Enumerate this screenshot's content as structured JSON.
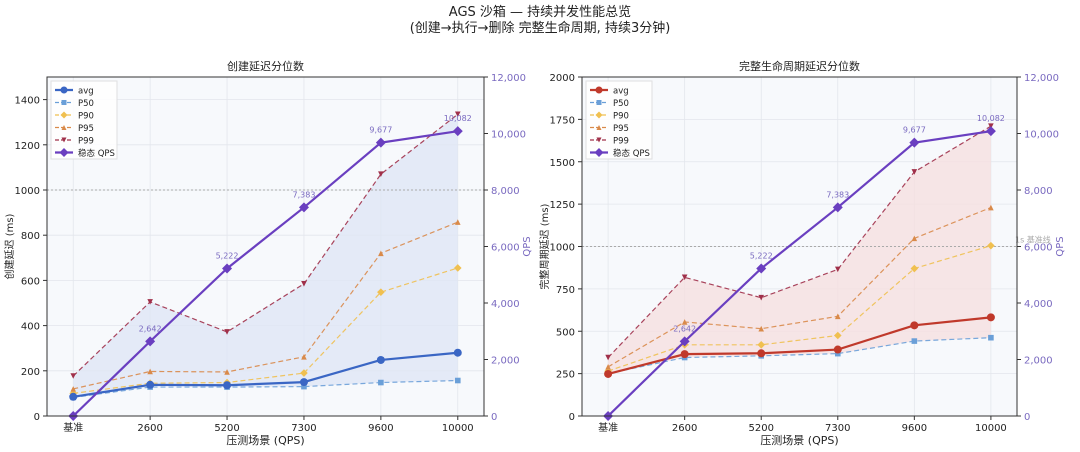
{
  "title": "AGS 沙箱 — 持续并发性能总览",
  "subtitle": "(创建→执行→删除 完整生命周期, 持续3分钟)",
  "colors": {
    "avg_left": "#3a66c4",
    "avg_right": "#c0392b",
    "p50": "#6a9fd8",
    "p90": "#f0c050",
    "p95": "#d98a4a",
    "p99": "#a0304a",
    "qps": "#6a3fc0",
    "fill_left": "#dfe6f5",
    "fill_right": "#f5e0e0"
  },
  "chart_data": [
    {
      "type": "line",
      "title": "创建延迟分位数",
      "xlabel": "压测场景 (QPS)",
      "ylabel": "创建延迟 (ms)",
      "y2label": "QPS",
      "categories": [
        "基准",
        "2600",
        "5200",
        "7300",
        "9600",
        "10000"
      ],
      "ylim": [
        0,
        1500
      ],
      "yticks": [
        0,
        200,
        400,
        600,
        800,
        1000,
        1200,
        1400
      ],
      "y2lim": [
        0,
        12000
      ],
      "y2ticks": [
        "0",
        "2,000",
        "4,000",
        "6,000",
        "8,000",
        "10,000",
        "12,000"
      ],
      "grid": true,
      "legend": "top-left",
      "reference_line": 1000,
      "series": [
        {
          "name": "avg",
          "values": [
            85,
            138,
            136,
            150,
            248,
            280
          ]
        },
        {
          "name": "P50",
          "values": [
            82,
            128,
            128,
            130,
            148,
            157
          ]
        },
        {
          "name": "P90",
          "values": [
            100,
            145,
            148,
            190,
            548,
            655
          ]
        },
        {
          "name": "P95",
          "values": [
            120,
            197,
            195,
            262,
            720,
            858
          ]
        },
        {
          "name": "P99",
          "values": [
            177,
            505,
            372,
            585,
            1070,
            1335
          ]
        },
        {
          "name": "稳态 QPS",
          "axis": "right",
          "values": [
            0,
            2642,
            5222,
            7383,
            9677,
            10082
          ],
          "labels": [
            "",
            "2,642",
            "5,222",
            "7,383",
            "9,677",
            "10,082"
          ]
        }
      ]
    },
    {
      "type": "line",
      "title": "完整生命周期延迟分位数",
      "xlabel": "压测场景 (QPS)",
      "ylabel": "完整周期延迟 (ms)",
      "y2label": "QPS",
      "categories": [
        "基准",
        "2600",
        "5200",
        "7300",
        "9600",
        "10000"
      ],
      "ylim": [
        0,
        2000
      ],
      "yticks": [
        0,
        250,
        500,
        750,
        1000,
        1250,
        1500,
        1750,
        2000
      ],
      "y2lim": [
        0,
        12000
      ],
      "y2ticks": [
        "0",
        "2,000",
        "4,000",
        "6,000",
        "8,000",
        "10,000",
        "12,000"
      ],
      "grid": true,
      "legend": "top-left",
      "reference_line": 1000,
      "reference_label": "1s 基准线",
      "series": [
        {
          "name": "avg",
          "values": [
            248,
            365,
            370,
            392,
            535,
            582
          ]
        },
        {
          "name": "P50",
          "values": [
            250,
            345,
            355,
            368,
            442,
            462
          ]
        },
        {
          "name": "P90",
          "values": [
            265,
            420,
            420,
            475,
            870,
            1005
          ]
        },
        {
          "name": "P95",
          "values": [
            290,
            555,
            515,
            588,
            1048,
            1230
          ]
        },
        {
          "name": "P99",
          "values": [
            345,
            818,
            698,
            865,
            1440,
            1710
          ]
        },
        {
          "name": "稳态 QPS",
          "axis": "right",
          "values": [
            0,
            2642,
            5222,
            7383,
            9677,
            10082
          ],
          "labels": [
            "",
            "2,642",
            "5,222",
            "7,383",
            "9,677",
            "10,082"
          ]
        }
      ]
    }
  ]
}
